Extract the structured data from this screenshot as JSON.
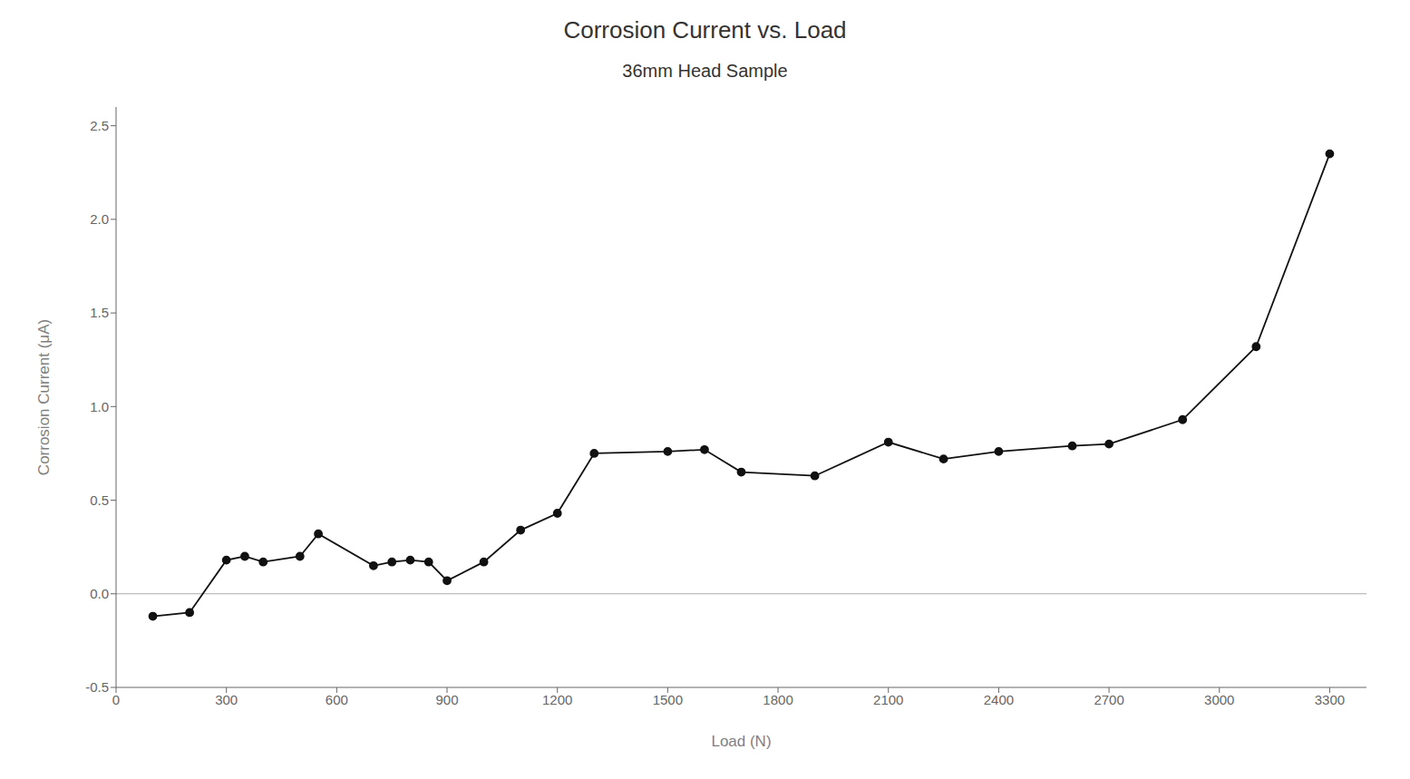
{
  "chart_data": {
    "type": "line",
    "title": "Corrosion Current vs. Load",
    "subtitle": "36mm Head Sample",
    "x_label": "Load (N)",
    "y_label": "Corrosion Current (μA)",
    "x": [
      100,
      200,
      300,
      350,
      400,
      500,
      550,
      700,
      750,
      800,
      850,
      900,
      1000,
      1100,
      1200,
      1300,
      1500,
      1600,
      1700,
      1900,
      2100,
      2250,
      2400,
      2600,
      2700,
      2900,
      3100,
      3300
    ],
    "values": [
      -0.12,
      -0.1,
      0.18,
      0.2,
      0.17,
      0.2,
      0.32,
      0.15,
      0.17,
      0.18,
      0.17,
      0.07,
      0.17,
      0.34,
      0.43,
      0.75,
      0.76,
      0.77,
      0.65,
      0.63,
      0.81,
      0.72,
      0.76,
      0.79,
      0.8,
      0.93,
      1.32,
      2.35
    ],
    "color": "#111111",
    "marker": "circle",
    "xlim": [
      0,
      3400
    ],
    "ylim": [
      -0.5,
      2.6
    ],
    "xticks": [
      0,
      300,
      600,
      900,
      1200,
      1500,
      1800,
      2100,
      2400,
      2700,
      3000,
      3300
    ],
    "yticks": [
      -0.5,
      {
        "value": 0,
        "label": "0.0"
      },
      0.5,
      {
        "value": 1,
        "label": "1.0"
      },
      1.5,
      {
        "value": 2,
        "label": "2.0"
      },
      2.5
    ],
    "hline": {
      "y": 0,
      "color": "#aaaaaa"
    },
    "grid": false
  }
}
